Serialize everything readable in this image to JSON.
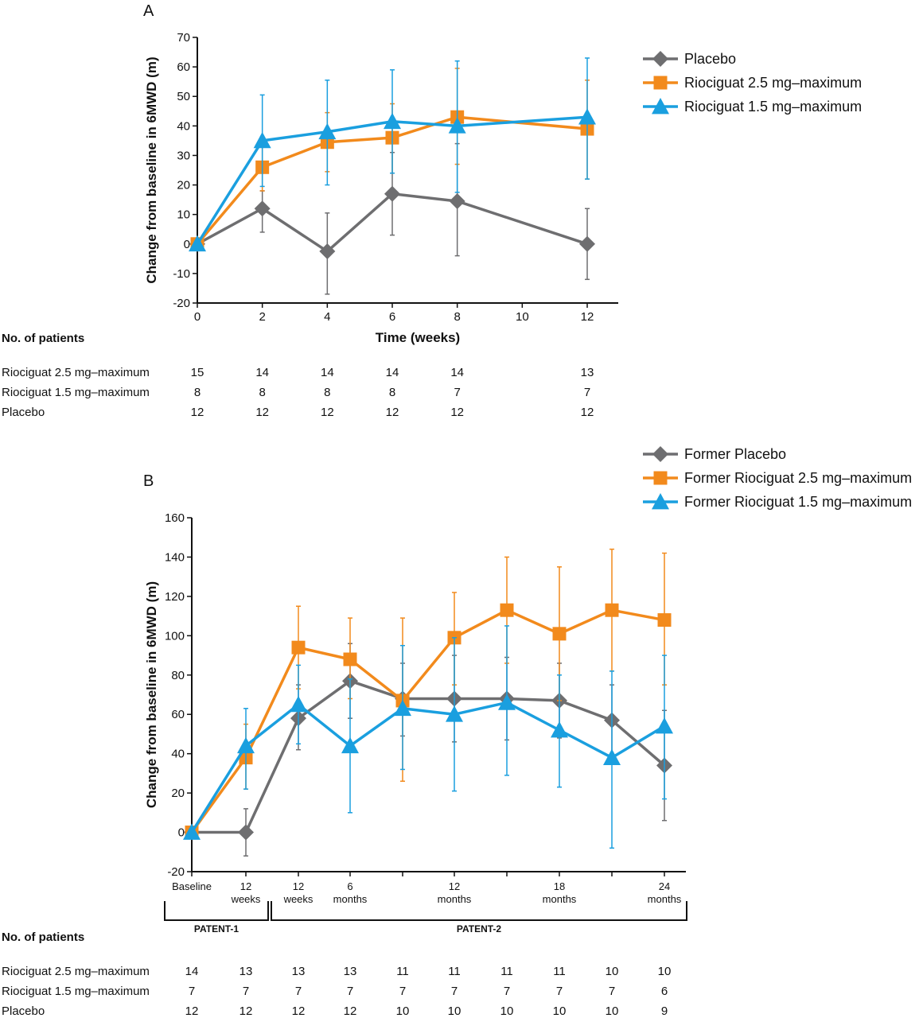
{
  "colors": {
    "placebo": "#6e6e70",
    "riociguat_2_5": "#f28a1c",
    "riociguat_1_5": "#1a9fdf",
    "axis": "#111111"
  },
  "chart_data": [
    {
      "type": "line",
      "panel": "A",
      "xlabel": "Time (weeks)",
      "ylabel": "Change from baseline in 6MWD (m)",
      "x": [
        0,
        2,
        4,
        6,
        8,
        10,
        12
      ],
      "x_ticks": [
        "0",
        "2",
        "4",
        "6",
        "8",
        "10",
        "12"
      ],
      "xlim": [
        0,
        13
      ],
      "ylim": [
        -20,
        70
      ],
      "y_ticks": [
        -20,
        -10,
        0,
        10,
        20,
        30,
        40,
        50,
        60,
        70
      ],
      "grid": false,
      "legend_position": "top-right",
      "legend": [
        "Placebo",
        "Riociguat 2.5 mg–maximum",
        "Riociguat 1.5 mg–maximum"
      ],
      "series": [
        {
          "name": "Placebo",
          "marker": "diamond",
          "x": [
            0,
            2,
            4,
            6,
            8,
            12
          ],
          "y": [
            0,
            12,
            -2.5,
            17,
            14.5,
            0
          ],
          "err_low": [
            0,
            4,
            -17,
            3,
            -4,
            -12
          ],
          "err_high": [
            0,
            18,
            10.5,
            31,
            34,
            12
          ]
        },
        {
          "name": "Riociguat 2.5 mg–maximum",
          "marker": "square",
          "x": [
            0,
            2,
            4,
            6,
            8,
            12
          ],
          "y": [
            0,
            26,
            34.5,
            36,
            43,
            39
          ],
          "err_low": [
            0,
            18,
            24.5,
            24,
            27,
            22
          ],
          "err_high": [
            0,
            34,
            44.5,
            47.5,
            59.5,
            55.5
          ]
        },
        {
          "name": "Riociguat 1.5 mg–maximum",
          "marker": "triangle",
          "x": [
            0,
            2,
            4,
            6,
            8,
            12
          ],
          "y": [
            0,
            35,
            38,
            41.5,
            40,
            43
          ],
          "err_low": [
            0,
            19.5,
            20,
            24,
            17.5,
            22
          ],
          "err_high": [
            0,
            50.5,
            55.5,
            59,
            62,
            63
          ]
        }
      ],
      "patients": {
        "header": "No. of patients",
        "rows": [
          {
            "label": "Riociguat 2.5 mg–maximum",
            "values": [
              "15",
              "14",
              "14",
              "14",
              "14",
              "13"
            ]
          },
          {
            "label": "Riociguat 1.5 mg–maximum",
            "values": [
              "8",
              "8",
              "8",
              "8",
              "7",
              "7"
            ]
          },
          {
            "label": "Placebo",
            "values": [
              "12",
              "12",
              "12",
              "12",
              "12",
              "12"
            ]
          }
        ],
        "columns_x": [
          0,
          2,
          4,
          6,
          8,
          12
        ]
      }
    },
    {
      "type": "line",
      "panel": "B",
      "ylabel": "Change from baseline in 6MWD (m)",
      "categories": [
        [
          "Baseline"
        ],
        [
          "12",
          "weeks"
        ],
        [
          "12",
          "weeks"
        ],
        [
          "6",
          "months"
        ],
        [],
        [
          "12",
          "months"
        ],
        [],
        [
          "18",
          "months"
        ],
        [],
        [
          "24",
          "months"
        ]
      ],
      "ylim": [
        -20,
        160
      ],
      "y_ticks": [
        -20,
        0,
        20,
        40,
        60,
        80,
        100,
        120,
        140,
        160
      ],
      "grid": false,
      "legend_position": "top-right",
      "legend": [
        "Former Placebo",
        "Former Riociguat 2.5 mg–maximum",
        "Former Riociguat 1.5 mg–maximum"
      ],
      "series": [
        {
          "name": "Former Placebo",
          "marker": "diamond",
          "y": [
            0,
            0,
            58,
            77,
            68,
            68,
            68,
            67,
            57,
            34
          ],
          "err_low": [
            0,
            -12,
            42,
            58,
            49,
            46,
            47,
            48,
            38,
            6
          ],
          "err_high": [
            0,
            12,
            75,
            96,
            86,
            90,
            89,
            86,
            75,
            62
          ]
        },
        {
          "name": "Former Riociguat 2.5 mg–maximum",
          "marker": "square",
          "y": [
            0,
            38,
            94,
            88,
            67,
            99,
            113,
            101,
            113,
            108
          ],
          "err_low": [
            0,
            22,
            73,
            68,
            26,
            75,
            86,
            67,
            82,
            75
          ],
          "err_high": [
            0,
            55,
            115,
            109,
            109,
            122,
            140,
            135,
            144,
            142
          ]
        },
        {
          "name": "Former Riociguat 1.5 mg–maximum",
          "marker": "triangle",
          "y": [
            0,
            44,
            65,
            44,
            63,
            60,
            66,
            52,
            38,
            54
          ],
          "err_low": [
            0,
            22,
            45,
            10,
            32,
            21,
            29,
            23,
            -8,
            17
          ],
          "err_high": [
            0,
            63,
            85,
            78,
            95,
            99,
            105,
            80,
            82,
            90
          ]
        }
      ],
      "brackets": [
        {
          "label": "PATENT-1",
          "from": 0,
          "to": 1
        },
        {
          "label": "PATENT-2",
          "from": 2,
          "to": 9
        }
      ],
      "patients": {
        "header": "No. of patients",
        "rows": [
          {
            "label": "Riociguat 2.5 mg–maximum",
            "values": [
              "14",
              "13",
              "13",
              "13",
              "11",
              "11",
              "11",
              "11",
              "10",
              "10"
            ]
          },
          {
            "label": "Riociguat 1.5 mg–maximum",
            "values": [
              "7",
              "7",
              "7",
              "7",
              "7",
              "7",
              "7",
              "7",
              "7",
              "6"
            ]
          },
          {
            "label": "Placebo",
            "values": [
              "12",
              "12",
              "12",
              "12",
              "10",
              "10",
              "10",
              "10",
              "10",
              "9"
            ]
          }
        ]
      }
    }
  ]
}
